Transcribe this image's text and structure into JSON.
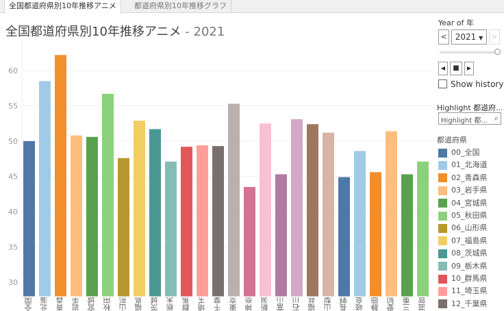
{
  "tabs": [
    {
      "label": "全国都道府県別10年推移アニメ",
      "active": true
    },
    {
      "label": "都道府県別10年推移グラフ",
      "active": false
    }
  ],
  "title": {
    "main": "全国都道府県別10年推移アニメ",
    "year": " - 2021"
  },
  "controls": {
    "year_label": "Year of 年",
    "year_value": "2021",
    "prev": "<",
    "next": ">",
    "show_history": "Show history",
    "show_history_checked": false,
    "highlight_label": "Highlight 都道府...",
    "highlight_placeholder": "Highlight 都...",
    "legend_title": "都道府県",
    "slider_position": 1.0
  },
  "legend": [
    {
      "label": "00_全国",
      "color": "#4e79a7"
    },
    {
      "label": "01_北海道",
      "color": "#a0cbe8"
    },
    {
      "label": "02_青森県",
      "color": "#f28e2b"
    },
    {
      "label": "03_岩手県",
      "color": "#ffbe7d"
    },
    {
      "label": "04_宮城県",
      "color": "#59a14f"
    },
    {
      "label": "05_秋田県",
      "color": "#8cd17d"
    },
    {
      "label": "06_山形県",
      "color": "#b6992d"
    },
    {
      "label": "07_福島県",
      "color": "#f1ce63"
    },
    {
      "label": "08_茨城県",
      "color": "#499894"
    },
    {
      "label": "09_栃木県",
      "color": "#86bcb6"
    },
    {
      "label": "10_群馬県",
      "color": "#e15759"
    },
    {
      "label": "11_埼玉県",
      "color": "#ff9d9a"
    },
    {
      "label": "12_千葉県",
      "color": "#79706e"
    }
  ],
  "chart_data": {
    "type": "bar",
    "title": "全国都道府県別10年推移アニメ - 2021",
    "xlabel": "",
    "ylabel": "",
    "ylim": [
      28,
      64
    ],
    "yticks": [
      30,
      35,
      40,
      45,
      50,
      55,
      60
    ],
    "grid": true,
    "legend": "right",
    "categories": [
      "全国",
      "北海道",
      "青森県",
      "岩手県",
      "宮城県",
      "秋田県",
      "山形県",
      "福島県",
      "茨城県",
      "栃木県",
      "群馬県",
      "埼玉県",
      "千葉県",
      "東京都",
      "神奈川県",
      "新潟県",
      "富山県",
      "石川県",
      "福井県",
      "山梨県",
      "長野県",
      "岐阜県",
      "静岡県",
      "愛知県",
      "三重県",
      "滋賀県"
    ],
    "values": [
      50.0,
      58.5,
      62.2,
      50.8,
      50.6,
      56.7,
      47.6,
      52.9,
      51.7,
      47.1,
      49.2,
      49.4,
      49.3,
      55.3,
      43.5,
      52.5,
      45.3,
      53.1,
      52.4,
      51.2,
      44.9,
      48.6,
      45.6,
      51.4,
      45.3,
      47.1
    ],
    "colors": [
      "#4e79a7",
      "#a0cbe8",
      "#f28e2b",
      "#ffbe7d",
      "#59a14f",
      "#8cd17d",
      "#b6992d",
      "#f1ce63",
      "#499894",
      "#86bcb6",
      "#e15759",
      "#ff9d9a",
      "#79706e",
      "#bab0ac",
      "#d37295",
      "#fabfd2",
      "#b07aa1",
      "#d4a6c8",
      "#9d7660",
      "#d7b5a6",
      "#4e79a7",
      "#a0cbe8",
      "#f28e2b",
      "#ffbe7d",
      "#59a14f",
      "#8cd17d"
    ]
  }
}
